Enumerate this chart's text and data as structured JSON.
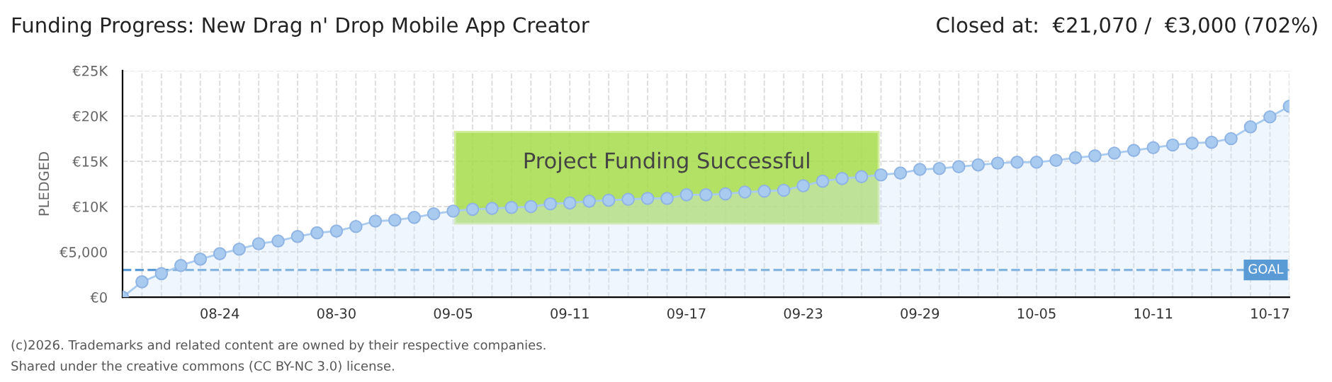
{
  "chart_data": {
    "type": "area",
    "title": "Funding Progress: New Drag n' Drop Mobile App Creator",
    "subtitle": "Closed at:  €21,070 /  €3,000 (702%)",
    "ylabel": "PLEDGED",
    "categories": [
      null,
      null,
      null,
      null,
      null,
      "08-24",
      null,
      null,
      null,
      null,
      null,
      "08-30",
      null,
      null,
      null,
      null,
      null,
      "09-05",
      null,
      null,
      null,
      null,
      null,
      "09-11",
      null,
      null,
      null,
      null,
      null,
      "09-17",
      null,
      null,
      null,
      null,
      null,
      "09-23",
      null,
      null,
      null,
      null,
      null,
      "09-29",
      null,
      null,
      null,
      null,
      null,
      "10-05",
      null,
      null,
      null,
      null,
      null,
      "10-11",
      null,
      null,
      null,
      null,
      null,
      "10-17",
      null
    ],
    "series": [
      {
        "color": "#a9cbf0",
        "values": [
          0,
          1700,
          2600,
          3500,
          4200,
          4800,
          5300,
          5900,
          6200,
          6700,
          7100,
          7300,
          7800,
          8400,
          8500,
          8800,
          9200,
          9500,
          9700,
          9800,
          9900,
          10000,
          10300,
          10400,
          10600,
          10700,
          10800,
          10900,
          10900,
          11300,
          11300,
          11400,
          11600,
          11700,
          11800,
          12300,
          12800,
          13100,
          13300,
          13500,
          13700,
          14100,
          14200,
          14400,
          14600,
          14800,
          14900,
          14900,
          15100,
          15400,
          15600,
          15900,
          16200,
          16500,
          16800,
          17000,
          17100,
          17500,
          18800,
          19900,
          21070
        ]
      }
    ],
    "ylim": [
      0,
      25000
    ],
    "yticks": [
      {
        "value": 0,
        "label": "€0"
      },
      {
        "value": 5000,
        "label": "€5,000"
      },
      {
        "value": 10000,
        "label": "€10K"
      },
      {
        "value": 15000,
        "label": "€15K"
      },
      {
        "value": 20000,
        "label": "€20K"
      },
      {
        "value": 25000,
        "label": "€25K"
      }
    ],
    "grid": true,
    "marker": "circle",
    "legend": false,
    "ref_lines": [
      {
        "axis": "y",
        "value": 3000,
        "label": "GOAL",
        "color": "#5b9bd5",
        "line_style": "dashed"
      }
    ],
    "annotations": [
      "Project Funding Successful",
      "(c)2026. Trademarks and related content are owned by their respective companies.",
      "Shared under the creative commons (CC BY-NC 3.0) license."
    ]
  }
}
